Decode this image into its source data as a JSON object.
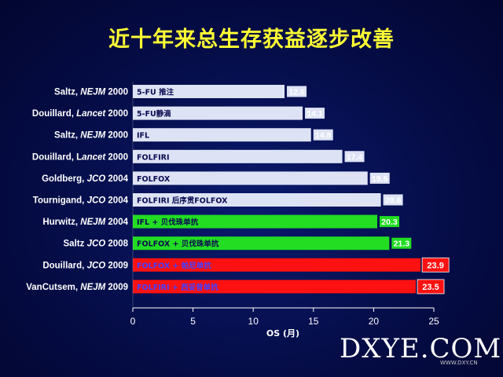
{
  "title": "近十年来总生存获益逐步改善",
  "watermark": "DXYE.COM",
  "watermark_sub": "WWW.DXY.CN",
  "chart_data": {
    "type": "bar",
    "orientation": "horizontal",
    "title": "近十年来总生存获益逐步改善",
    "xlabel": "OS (月)",
    "xlim": [
      0,
      25
    ],
    "xticks": [
      0,
      5,
      10,
      15,
      20,
      25
    ],
    "grid": false,
    "bars": [
      {
        "study": "Saltz, NEJM 2000",
        "author": "Saltz, ",
        "journal": "NEJM",
        "year": " 2000",
        "regimen": "5-FU 推注",
        "value": 12.6,
        "value_label": "12.6",
        "color": "#dde3f5",
        "label_style": "inside"
      },
      {
        "study": "Douillard, Lancet 2000",
        "author": "Douillard, ",
        "journal": "Lancet",
        "year": " 2000",
        "regimen": "5-FU静滴",
        "value": 14.1,
        "value_label": "14.1",
        "color": "#dde3f5",
        "label_style": "inside"
      },
      {
        "study": "Saltz, NEJM 2000",
        "author": "Saltz, ",
        "journal": "NEJM",
        "year": " 2000",
        "regimen": "IFL",
        "value": 14.8,
        "value_label": "14.8",
        "color": "#dde3f5",
        "label_style": "inside"
      },
      {
        "study": "Douillard, Lancet 2000",
        "author": "Douillard, L",
        "journal": "ancet",
        "year": " 2000",
        "regimen": "FOLFIRI",
        "value": 17.4,
        "value_label": "17.4",
        "color": "#dde3f5",
        "label_style": "inside"
      },
      {
        "study": "Goldberg, JCO 2004",
        "author": "Goldberg, ",
        "journal": "JCO",
        "year": " 2004",
        "regimen": "FOLFOX",
        "value": 19.5,
        "value_label": "19.5",
        "color": "#dde3f5",
        "label_style": "inside"
      },
      {
        "study": "Tournigand, JCO 2004",
        "author": "Tournigand, ",
        "journal": "JCO",
        "year": " 2004",
        "regimen": "FOLFIRI 后序贯FOLFOX",
        "value": 20.6,
        "value_label": "20.6",
        "color": "#dde3f5",
        "label_style": "inside"
      },
      {
        "study": "Hurwitz, NEJM 2004",
        "author": "Hurwitz, ",
        "journal": "NEJM",
        "year": " 2004",
        "regimen": "IFL + 贝伐珠单抗",
        "value": 20.3,
        "value_label": "20.3",
        "color": "#22dd22",
        "label_style": "inside"
      },
      {
        "study": "Saltz JCO 2008",
        "author": "Saltz ",
        "journal": "JCO",
        "year": " 2008",
        "regimen": "FOLFOX + 贝伐珠单抗",
        "value": 21.3,
        "value_label": "21.3",
        "color": "#22dd22",
        "label_style": "inside"
      },
      {
        "study": "Douillard, JCO 2009",
        "author": "Douillard, ",
        "journal": "JCO",
        "year": " 2009",
        "regimen": "FOLFOX + 帕尼单抗",
        "value": 23.9,
        "value_label": "23.9",
        "color": "#ff1111",
        "label_style": "box"
      },
      {
        "study": "VanCutsem, NEJM 2009",
        "author": "VanCutsem, ",
        "journal": "NEJM",
        "year": " 2009",
        "regimen": "FOLFIRI + 西妥昔单抗",
        "value": 23.5,
        "value_label": "23.5",
        "color": "#ff1111",
        "label_style": "box"
      }
    ]
  }
}
